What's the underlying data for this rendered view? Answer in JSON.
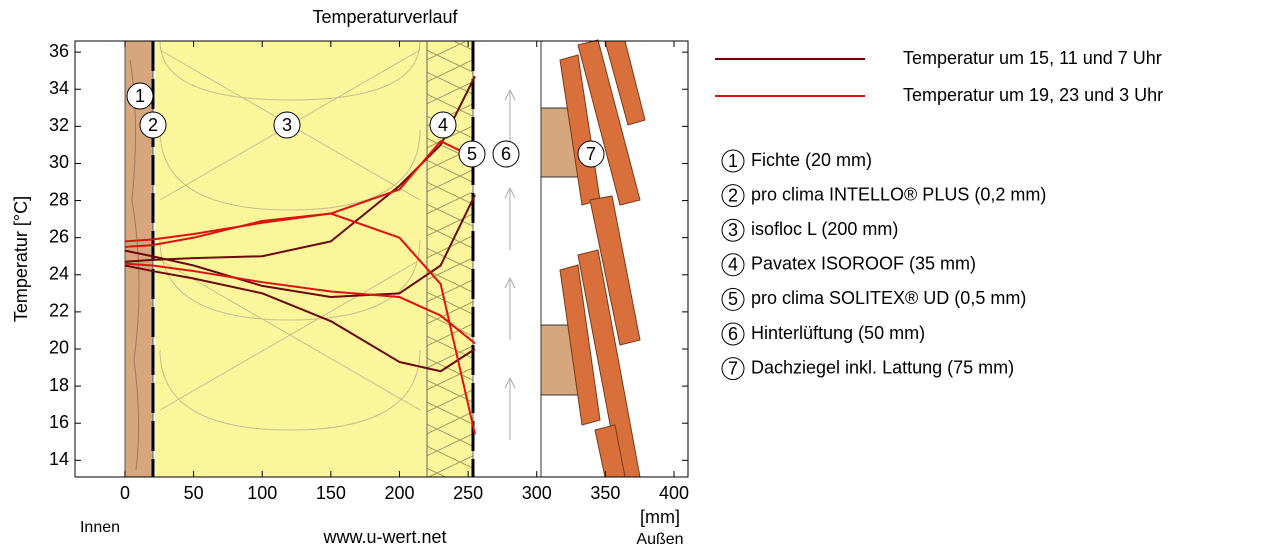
{
  "chart_data": {
    "type": "line",
    "title": "Temperaturverlauf",
    "y_label": "Temperatur [°C]",
    "x_unit": "[mm]",
    "left_label": "Innen",
    "right_label": "Außen",
    "source": "www.u-wert.net",
    "x": [
      0,
      20,
      50,
      100,
      150,
      200,
      230,
      255
    ],
    "xlim": [
      -36.4,
      410.2
    ],
    "xticks": [
      0,
      50,
      100,
      150,
      200,
      250,
      300,
      350,
      400
    ],
    "ylim": [
      13.1,
      36.6
    ],
    "yticks": [
      14,
      16,
      18,
      20,
      22,
      24,
      26,
      28,
      30,
      32,
      34,
      36
    ],
    "grid": false,
    "series": [
      {
        "name": "Temperatur um 15, 11 und 7 Uhr",
        "color": "#6b0a0a",
        "values": [
          24.7,
          24.8,
          24.9,
          25.0,
          25.8,
          28.8,
          31.0,
          34.7
        ]
      },
      {
        "name": null,
        "color": "#6b0a0a",
        "values": [
          25.3,
          25.0,
          24.5,
          23.4,
          22.8,
          23.0,
          24.5,
          28.3
        ]
      },
      {
        "name": null,
        "color": "#6b0a0a",
        "values": [
          24.5,
          24.2,
          23.8,
          23.0,
          21.5,
          19.3,
          18.8,
          20.0
        ]
      },
      {
        "name": "Temperatur um 19, 23 und 3 Uhr",
        "color": "#e01010",
        "values": [
          25.8,
          25.9,
          26.2,
          26.8,
          27.3,
          28.6,
          31.2,
          30.3
        ]
      },
      {
        "name": null,
        "color": "#e01010",
        "values": [
          25.5,
          25.6,
          26.0,
          26.9,
          27.3,
          26.0,
          23.5,
          15.4
        ]
      },
      {
        "name": null,
        "color": "#e01010",
        "values": [
          24.6,
          24.5,
          24.2,
          23.6,
          23.1,
          22.8,
          21.8,
          20.3
        ]
      }
    ],
    "layers": [
      {
        "number": "1",
        "name": "Fichte (20 mm)"
      },
      {
        "number": "2",
        "name": "pro clima INTELLO® PLUS (0,2 mm)"
      },
      {
        "number": "3",
        "name": "isofloc L (200 mm)"
      },
      {
        "number": "4",
        "name": "Pavatex ISOROOF (35 mm)"
      },
      {
        "number": "5",
        "name": "pro clima SOLITEX® UD (0,5 mm)"
      },
      {
        "number": "6",
        "name": "Hinterlüftung (50 mm)"
      },
      {
        "number": "7",
        "name": "Dachziegel inkl. Lattung (75 mm)"
      }
    ]
  }
}
